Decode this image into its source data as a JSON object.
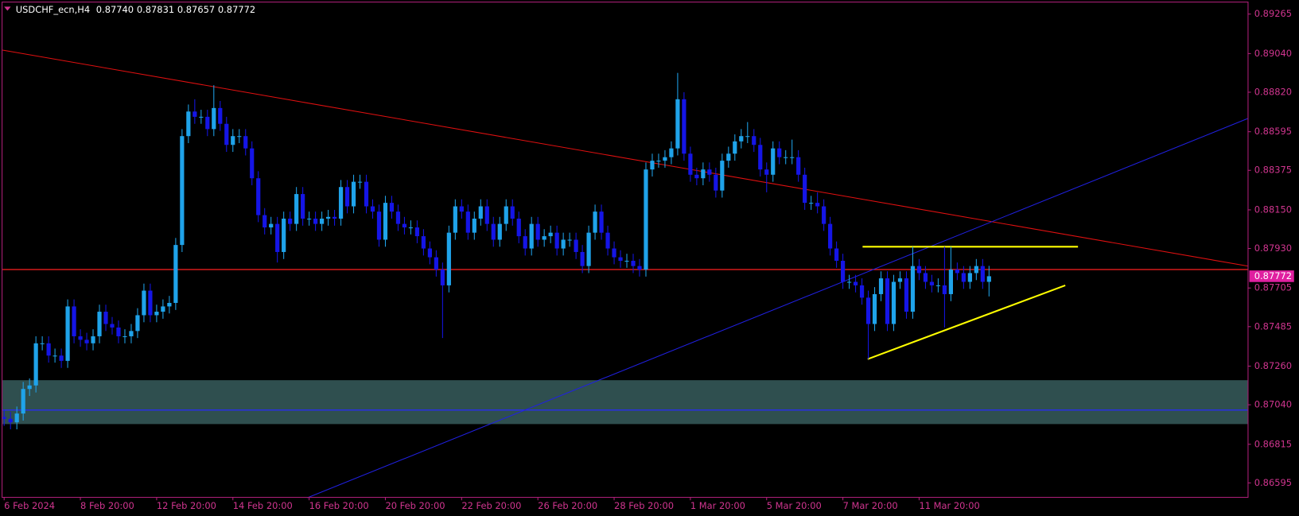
{
  "chart_data": {
    "type": "candlestick",
    "header": {
      "symbol": "USDCHF_ecn,H4",
      "ohlc": [
        "0.87740",
        "0.87831",
        "0.87657",
        "0.87772"
      ]
    },
    "current_price": {
      "value": 0.87772,
      "label": "0.87772"
    },
    "up_color": "#1fa3ea",
    "down_color": "#1515e6",
    "price_label_color": "#e020a0",
    "xlim": [
      -0.26,
      195.7
    ],
    "ylim": [
      0.86515,
      0.89331
    ],
    "yticks": [
      0.89265,
      {
        "value": 0.8904,
        "label": "0.89040"
      },
      {
        "value": 0.8882,
        "label": "0.88820"
      },
      0.88595,
      0.88375,
      {
        "value": 0.8815,
        "label": "0.88150"
      },
      {
        "value": 0.8793,
        "label": "0.87930"
      },
      0.87705,
      0.87485,
      {
        "value": 0.8726,
        "label": "0.87260"
      },
      {
        "value": 0.8704,
        "label": "0.87040"
      },
      0.86815,
      0.86595
    ],
    "xticks": [
      {
        "value": 0,
        "label": "6 Feb 2024"
      },
      {
        "value": 12,
        "label": "8 Feb 20:00"
      },
      {
        "value": 24,
        "label": "12 Feb 20:00"
      },
      {
        "value": 36,
        "label": "14 Feb 20:00"
      },
      {
        "value": 48,
        "label": "16 Feb 20:00"
      },
      {
        "value": 60,
        "label": "20 Feb 20:00"
      },
      {
        "value": 72,
        "label": "22 Feb 20:00"
      },
      {
        "value": 84,
        "label": "26 Feb 20:00"
      },
      {
        "value": 96,
        "label": "28 Feb 20:00"
      },
      {
        "value": 108,
        "label": "1 Mar 20:00"
      },
      {
        "value": 120,
        "label": "5 Mar 20:00"
      },
      {
        "value": 132,
        "label": "7 Mar 20:00"
      },
      {
        "value": 144,
        "label": "11 Mar 20:00"
      }
    ],
    "open": [
      0.8697,
      0.8696,
      0.8694,
      0.8699,
      0.8713,
      0.8715,
      0.8739,
      0.8739,
      0.8732,
      0.8732,
      0.8729,
      0.876,
      0.8743,
      0.8741,
      0.8739,
      0.8743,
      0.8757,
      0.875,
      0.8748,
      0.8743,
      0.8743,
      0.8746,
      0.8755,
      0.8769,
      0.8755,
      0.8757,
      0.876,
      0.8762,
      0.8795,
      0.8857,
      0.8871,
      0.8868,
      0.8868,
      0.8861,
      0.8873,
      0.8864,
      0.8852,
      0.8857,
      0.8857,
      0.885,
      0.8833,
      0.8812,
      0.8805,
      0.8807,
      0.8791,
      0.881,
      0.8807,
      0.8824,
      0.881,
      0.881,
      0.8807,
      0.881,
      0.8811,
      0.881,
      0.8828,
      0.8817,
      0.8831,
      0.8831,
      0.8817,
      0.8814,
      0.8798,
      0.8819,
      0.8814,
      0.8807,
      0.8805,
      0.8805,
      0.88,
      0.8793,
      0.8788,
      0.8781,
      0.8772,
      0.8802,
      0.8817,
      0.8814,
      0.8802,
      0.881,
      0.8817,
      0.8807,
      0.8798,
      0.8807,
      0.8817,
      0.881,
      0.88,
      0.8793,
      0.8807,
      0.8798,
      0.88,
      0.8802,
      0.8793,
      0.8798,
      0.8798,
      0.8791,
      0.8783,
      0.8802,
      0.8814,
      0.8802,
      0.8793,
      0.8788,
      0.8786,
      0.8786,
      0.8783,
      0.8781,
      0.8838,
      0.8843,
      0.8843,
      0.8845,
      0.885,
      0.8878,
      0.8847,
      0.8835,
      0.8833,
      0.8838,
      0.8835,
      0.8826,
      0.8843,
      0.8847,
      0.8854,
      0.8857,
      0.8857,
      0.8852,
      0.8838,
      0.8835,
      0.885,
      0.8845,
      0.8845,
      0.8845,
      0.8835,
      0.8819,
      0.8819,
      0.8817,
      0.8807,
      0.8793,
      0.8786,
      0.8774,
      0.8774,
      0.8772,
      0.8765,
      0.875,
      0.8767,
      0.8776,
      0.875,
      0.8774,
      0.8776,
      0.8757,
      0.8783,
      0.8779,
      0.8774,
      0.8772,
      0.8772,
      0.8767,
      0.8781,
      0.8779,
      0.8774,
      0.8779,
      0.8783,
      0.8774
    ],
    "high": [
      0.8701,
      0.87,
      0.8703,
      0.8717,
      0.8719,
      0.8743,
      0.8743,
      0.8743,
      0.8736,
      0.8736,
      0.8764,
      0.8764,
      0.8747,
      0.8745,
      0.8747,
      0.8761,
      0.8761,
      0.8754,
      0.8752,
      0.8747,
      0.875,
      0.8759,
      0.8773,
      0.8773,
      0.8761,
      0.8764,
      0.8766,
      0.8799,
      0.8861,
      0.8875,
      0.8878,
      0.8872,
      0.8872,
      0.8886,
      0.8877,
      0.8868,
      0.8861,
      0.8861,
      0.8861,
      0.8854,
      0.8837,
      0.8816,
      0.8811,
      0.8811,
      0.8814,
      0.8814,
      0.8828,
      0.8828,
      0.8814,
      0.8814,
      0.8814,
      0.8815,
      0.8815,
      0.8832,
      0.8832,
      0.8835,
      0.8835,
      0.8835,
      0.8821,
      0.8818,
      0.8823,
      0.8823,
      0.8818,
      0.8811,
      0.8809,
      0.8809,
      0.8804,
      0.8797,
      0.8792,
      0.8785,
      0.8806,
      0.8821,
      0.8821,
      0.8818,
      0.8814,
      0.8821,
      0.8821,
      0.8811,
      0.8811,
      0.8821,
      0.8821,
      0.8814,
      0.8804,
      0.8811,
      0.8811,
      0.8804,
      0.8806,
      0.8806,
      0.8802,
      0.8802,
      0.8802,
      0.8795,
      0.8806,
      0.8818,
      0.8818,
      0.8806,
      0.8797,
      0.8792,
      0.879,
      0.879,
      0.8787,
      0.8842,
      0.8847,
      0.8847,
      0.8849,
      0.8854,
      0.8893,
      0.8882,
      0.8851,
      0.8839,
      0.8842,
      0.8842,
      0.8839,
      0.8847,
      0.8851,
      0.8858,
      0.8861,
      0.8865,
      0.8861,
      0.8856,
      0.8842,
      0.8854,
      0.8854,
      0.8849,
      0.8855,
      0.8849,
      0.8839,
      0.8823,
      0.8825,
      0.8821,
      0.8811,
      0.8797,
      0.879,
      0.8778,
      0.8778,
      0.8776,
      0.8769,
      0.8771,
      0.878,
      0.878,
      0.8778,
      0.878,
      0.878,
      0.8794,
      0.8787,
      0.8783,
      0.8778,
      0.8776,
      0.8794,
      0.8794,
      0.8785,
      0.8783,
      0.8783,
      0.8787,
      0.8787,
      0.87831
    ],
    "low": [
      0.8692,
      0.869,
      0.869,
      0.8695,
      0.8709,
      0.8711,
      0.8735,
      0.8728,
      0.8728,
      0.8725,
      0.8725,
      0.8739,
      0.8737,
      0.8735,
      0.8735,
      0.8739,
      0.8746,
      0.8744,
      0.8739,
      0.8739,
      0.8739,
      0.8742,
      0.8751,
      0.8751,
      0.8751,
      0.8753,
      0.8756,
      0.8758,
      0.8791,
      0.8853,
      0.8864,
      0.8864,
      0.8857,
      0.8857,
      0.886,
      0.8848,
      0.8848,
      0.8853,
      0.8846,
      0.8829,
      0.8808,
      0.8801,
      0.8801,
      0.8785,
      0.8787,
      0.8803,
      0.8803,
      0.8806,
      0.8806,
      0.8803,
      0.8803,
      0.8806,
      0.8806,
      0.8806,
      0.8813,
      0.8813,
      0.8827,
      0.8813,
      0.881,
      0.8794,
      0.8794,
      0.881,
      0.8803,
      0.8801,
      0.8801,
      0.8796,
      0.8789,
      0.8784,
      0.8777,
      0.8742,
      0.8768,
      0.8798,
      0.881,
      0.8798,
      0.8798,
      0.8806,
      0.8803,
      0.8794,
      0.8794,
      0.8803,
      0.8806,
      0.8796,
      0.8789,
      0.8789,
      0.8794,
      0.8794,
      0.8796,
      0.8789,
      0.8789,
      0.8794,
      0.8787,
      0.8779,
      0.8779,
      0.8798,
      0.8798,
      0.8789,
      0.8784,
      0.8782,
      0.8782,
      0.8779,
      0.8777,
      0.8777,
      0.8834,
      0.8839,
      0.8839,
      0.8841,
      0.8846,
      0.8843,
      0.8831,
      0.8829,
      0.8829,
      0.8831,
      0.8822,
      0.8822,
      0.8839,
      0.8843,
      0.885,
      0.8853,
      0.8848,
      0.8834,
      0.8825,
      0.8831,
      0.8841,
      0.8841,
      0.8841,
      0.8831,
      0.8815,
      0.8815,
      0.8813,
      0.8803,
      0.8789,
      0.8782,
      0.877,
      0.877,
      0.8768,
      0.8761,
      0.873,
      0.8746,
      0.8763,
      0.8746,
      0.8746,
      0.877,
      0.8753,
      0.8753,
      0.8775,
      0.877,
      0.8768,
      0.8768,
      0.8748,
      0.8763,
      0.8775,
      0.877,
      0.877,
      0.8775,
      0.877,
      0.87657
    ],
    "close": [
      0.8696,
      0.8694,
      0.8699,
      0.8713,
      0.8715,
      0.8739,
      0.8739,
      0.8732,
      0.8732,
      0.8729,
      0.876,
      0.8743,
      0.8741,
      0.8739,
      0.8743,
      0.8757,
      0.875,
      0.8748,
      0.8743,
      0.8743,
      0.8746,
      0.8755,
      0.8769,
      0.8755,
      0.8757,
      0.876,
      0.8762,
      0.8795,
      0.8857,
      0.8871,
      0.8868,
      0.8868,
      0.8861,
      0.8873,
      0.8864,
      0.8852,
      0.8857,
      0.8857,
      0.885,
      0.8833,
      0.8812,
      0.8805,
      0.8807,
      0.8791,
      0.881,
      0.8807,
      0.8824,
      0.881,
      0.881,
      0.8807,
      0.881,
      0.8811,
      0.881,
      0.8828,
      0.8817,
      0.8831,
      0.8831,
      0.8817,
      0.8814,
      0.8798,
      0.8819,
      0.8814,
      0.8807,
      0.8805,
      0.8805,
      0.88,
      0.8793,
      0.8788,
      0.8781,
      0.8772,
      0.8802,
      0.8817,
      0.8814,
      0.8802,
      0.881,
      0.8817,
      0.8807,
      0.8798,
      0.8807,
      0.8817,
      0.881,
      0.88,
      0.8793,
      0.8807,
      0.8798,
      0.88,
      0.8802,
      0.8793,
      0.8798,
      0.8798,
      0.8791,
      0.8783,
      0.8802,
      0.8814,
      0.8802,
      0.8793,
      0.8788,
      0.8786,
      0.8786,
      0.8783,
      0.8781,
      0.8838,
      0.8843,
      0.8843,
      0.8845,
      0.885,
      0.8878,
      0.8847,
      0.8835,
      0.8833,
      0.8838,
      0.8835,
      0.8826,
      0.8843,
      0.8847,
      0.8854,
      0.8857,
      0.8857,
      0.8852,
      0.8838,
      0.8835,
      0.885,
      0.8845,
      0.8845,
      0.8845,
      0.8835,
      0.8819,
      0.8819,
      0.8817,
      0.8807,
      0.8793,
      0.8786,
      0.8774,
      0.8774,
      0.8772,
      0.8765,
      0.875,
      0.8767,
      0.8776,
      0.875,
      0.8774,
      0.8776,
      0.8757,
      0.8783,
      0.8779,
      0.8774,
      0.8772,
      0.8772,
      0.8767,
      0.8781,
      0.8779,
      0.8774,
      0.8779,
      0.8783,
      0.8774,
      0.87772
    ],
    "zones": [
      {
        "color": "#2f4f4f",
        "from": 0.8693,
        "to": 0.8718
      }
    ],
    "hlines": [
      {
        "color": "#ff2020",
        "value": 0.8781
      },
      {
        "color": "#2828ff",
        "value": 0.8701
      }
    ],
    "lines": [
      {
        "color": "#e01010",
        "x": [
          -0.26,
          195.7
        ],
        "y": [
          0.8906,
          0.8783
        ]
      },
      {
        "color": "#2020e0",
        "x": [
          47.7,
          195.7
        ],
        "y": [
          0.8651,
          0.8867
        ]
      },
      {
        "color": "#ffff00",
        "x": [
          135.1,
          169
        ],
        "y": [
          0.8794,
          0.8794
        ]
      },
      {
        "color": "#ffff00",
        "x": [
          135.9,
          167
        ],
        "y": [
          0.873,
          0.8772
        ]
      }
    ]
  }
}
